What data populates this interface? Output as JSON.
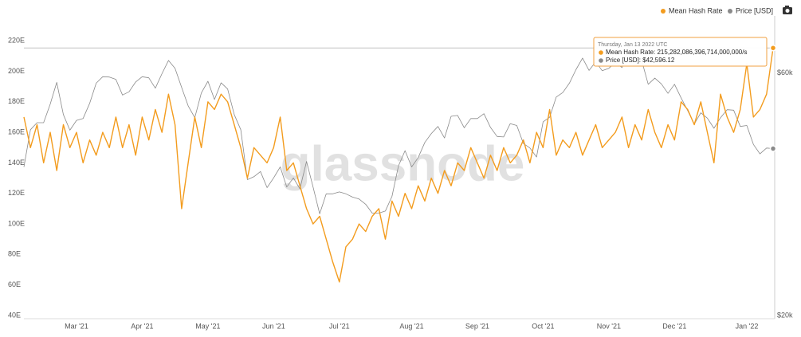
{
  "chart_data": {
    "type": "line",
    "watermark": "glassnode",
    "categories": [
      null,
      null,
      null,
      null,
      null,
      null,
      null,
      null,
      "Mar '21",
      null,
      null,
      null,
      null,
      null,
      null,
      null,
      null,
      null,
      "Apr '21",
      null,
      null,
      null,
      null,
      null,
      null,
      null,
      null,
      null,
      "May '21",
      null,
      null,
      null,
      null,
      null,
      null,
      null,
      null,
      null,
      "Jun '21",
      null,
      null,
      null,
      null,
      null,
      null,
      null,
      null,
      null,
      "Jul '21",
      null,
      null,
      null,
      null,
      null,
      null,
      null,
      null,
      null,
      null,
      "Aug '21",
      null,
      null,
      null,
      null,
      null,
      null,
      null,
      null,
      null,
      "Sep '21",
      null,
      null,
      null,
      null,
      null,
      null,
      null,
      null,
      null,
      "Oct '21",
      null,
      null,
      null,
      null,
      null,
      null,
      null,
      null,
      null,
      "Nov '21",
      null,
      null,
      null,
      null,
      null,
      null,
      null,
      null,
      null,
      "Dec '21",
      null,
      null,
      null,
      null,
      null,
      null,
      null,
      null,
      null,
      null,
      "Jan '22",
      null,
      null,
      null,
      null
    ],
    "series": [
      {
        "name": "Mean Hash Rate",
        "color": "#f39c1e",
        "values": [
          170,
          150,
          165,
          140,
          160,
          135,
          165,
          150,
          160,
          140,
          155,
          145,
          160,
          150,
          170,
          150,
          165,
          145,
          170,
          155,
          175,
          160,
          185,
          165,
          110,
          140,
          170,
          150,
          180,
          175,
          185,
          180,
          165,
          150,
          130,
          150,
          145,
          140,
          150,
          170,
          135,
          140,
          125,
          110,
          100,
          105,
          90,
          75,
          62,
          85,
          90,
          100,
          95,
          105,
          110,
          90,
          115,
          105,
          120,
          110,
          125,
          115,
          130,
          120,
          135,
          125,
          140,
          135,
          150,
          140,
          130,
          145,
          135,
          150,
          140,
          145,
          155,
          140,
          160,
          150,
          175,
          145,
          155,
          150,
          160,
          145,
          155,
          165,
          150,
          155,
          160,
          170,
          150,
          165,
          155,
          175,
          160,
          150,
          165,
          155,
          180,
          175,
          165,
          180,
          160,
          140,
          185,
          170,
          160,
          175,
          205,
          170,
          175,
          185,
          215.282
        ]
      },
      {
        "name": "Price [USD]",
        "color": "#8a8a8a",
        "axis": "y2",
        "values": [
          39200,
          46400,
          47900,
          47900,
          52100,
          57500,
          49700,
          46300,
          48400,
          48800,
          52300,
          57300,
          59000,
          58900,
          58300,
          54300,
          55100,
          57600,
          59000,
          58700,
          56000,
          59800,
          63500,
          61300,
          56200,
          51700,
          49000,
          54800,
          57800,
          53200,
          57400,
          55800,
          49700,
          46400,
          37000,
          37500,
          38400,
          35700,
          37300,
          39200,
          35800,
          37300,
          35500,
          40200,
          35800,
          31700,
          34700,
          34700,
          35000,
          34700,
          34200,
          33900,
          33100,
          31800,
          31800,
          32100,
          34300,
          39400,
          42200,
          39200,
          40900,
          43800,
          45600,
          47100,
          44700,
          49300,
          49500,
          46800,
          48800,
          48800,
          49900,
          46900,
          45000,
          44900,
          47700,
          47300,
          43600,
          42700,
          41000,
          48100,
          49100,
          53800,
          54900,
          57300,
          60900,
          64200,
          60700,
          63100,
          60600,
          61300,
          63000,
          61500,
          67500,
          64100,
          63500,
          57000,
          58600,
          57100,
          54700,
          57000,
          53600,
          50600,
          47600,
          50100,
          48900,
          46700,
          49000,
          50800,
          50700,
          47100,
          47300,
          43400,
          41600,
          42700,
          42596.12
        ]
      }
    ],
    "ylim": [
      40,
      230
    ],
    "yticks": [
      {
        "value": 40,
        "label": "40E"
      },
      {
        "value": 60,
        "label": "60E"
      },
      {
        "value": 80,
        "label": "80E"
      },
      {
        "value": 100,
        "label": "100E"
      },
      {
        "value": 120,
        "label": "120E"
      },
      {
        "value": 140,
        "label": "140E"
      },
      {
        "value": 160,
        "label": "160E"
      },
      {
        "value": 180,
        "label": "180E"
      },
      {
        "value": 200,
        "label": "200E"
      },
      {
        "value": 220,
        "label": "220E"
      }
    ],
    "y2lim": [
      20000,
      74400
    ],
    "y2scale": "log",
    "y2ticks": [
      {
        "value": 20000,
        "label": "$20k"
      },
      {
        "value": 60000,
        "label": "$60k"
      }
    ],
    "tooltip": {
      "date": "Thursday, Jan 13 2022 UTC",
      "lines": [
        "Mean Hash Rate: 215,282,086,396,714,000,000/s",
        "Price [USD]: $42,596.12"
      ]
    }
  }
}
